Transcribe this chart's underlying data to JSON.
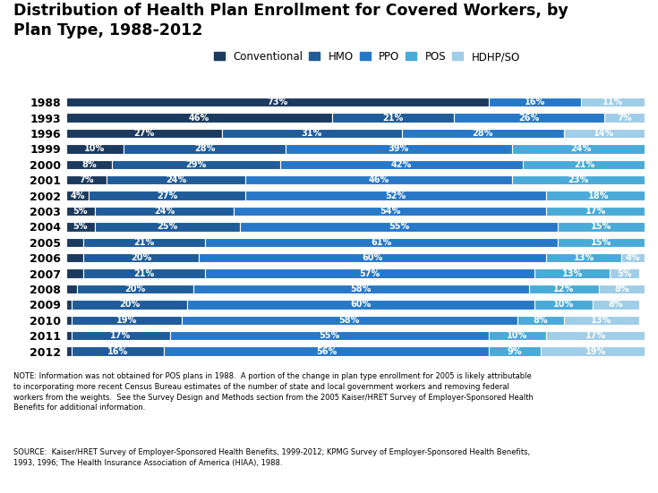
{
  "title": "Distribution of Health Plan Enrollment for Covered Workers, by\nPlan Type, 1988-2012",
  "years": [
    "1988",
    "1993",
    "1996",
    "1999",
    "2000",
    "2001",
    "2002",
    "2003",
    "2004",
    "2005",
    "2006",
    "2007",
    "2008",
    "2009",
    "2010",
    "2011",
    "2012"
  ],
  "data": {
    "Conventional": [
      73,
      46,
      27,
      10,
      8,
      7,
      4,
      5,
      5,
      3,
      3,
      3,
      2,
      1,
      1,
      1,
      1
    ],
    "HMO": [
      0,
      21,
      31,
      28,
      29,
      24,
      27,
      24,
      25,
      21,
      20,
      21,
      20,
      20,
      19,
      17,
      16
    ],
    "PPO": [
      16,
      26,
      28,
      39,
      42,
      46,
      52,
      54,
      55,
      61,
      60,
      57,
      58,
      60,
      58,
      55,
      56
    ],
    "POS": [
      0,
      0,
      0,
      24,
      21,
      23,
      18,
      17,
      15,
      15,
      13,
      13,
      12,
      10,
      8,
      10,
      9
    ],
    "HDHP/SO": [
      11,
      7,
      14,
      0,
      0,
      0,
      0,
      0,
      0,
      0,
      4,
      5,
      8,
      8,
      13,
      17,
      19
    ]
  },
  "colors": {
    "Conventional": "#1c3a5e",
    "HMO": "#1f5c99",
    "PPO": "#2878c8",
    "POS": "#4aaad8",
    "HDHP/SO": "#a0cde8"
  },
  "plan_types": [
    "Conventional",
    "HMO",
    "PPO",
    "POS",
    "HDHP/SO"
  ],
  "note": "NOTE: Information was not obtained for POS plans in 1988.  A portion of the change in plan type enrollment for 2005 is likely attributable\nto incorporating more recent Census Bureau estimates of the number of state and local government workers and removing federal\nworkers from the weights.  See the Survey Design and Methods section from the 2005 Kaiser/HRET Survey of Employer-Sponsored Health\nBenefits for additional information.",
  "source": "SOURCE:  Kaiser/HRET Survey of Employer-Sponsored Health Benefits, 1999-2012; KPMG Survey of Employer-Sponsored Health Benefits,\n1993, 1996; The Health Insurance Association of America (HIAA), 1988.",
  "bar_height": 0.6,
  "label_fontsize": 7,
  "title_fontsize": 12.5,
  "legend_fontsize": 8.5,
  "ytick_fontsize": 9
}
